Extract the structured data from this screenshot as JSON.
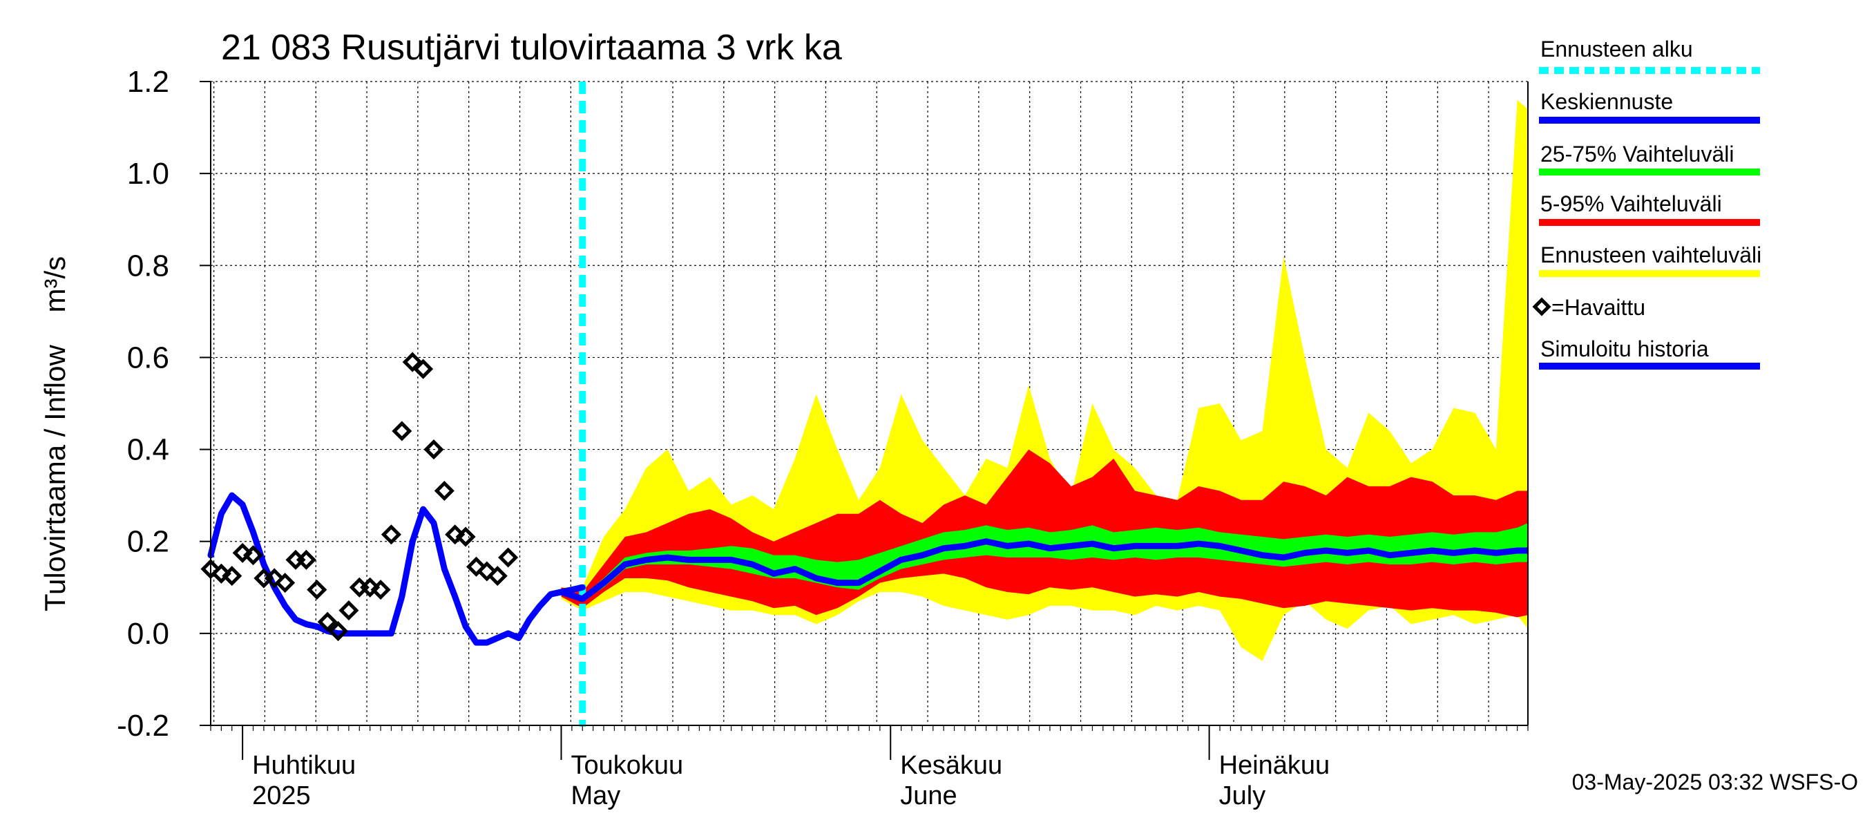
{
  "chart_data": {
    "type": "area",
    "title": "21 083 Rusutjärvi tulovirtaama 3 vrk ka",
    "ylabel": "Tulovirtaama / Inflow    m³/s",
    "ylim": [
      -0.2,
      1.2
    ],
    "yticks": [
      -0.2,
      0.0,
      0.2,
      0.4,
      0.6,
      0.8,
      1.0,
      1.2
    ],
    "ytick_labels": [
      "-0.2",
      "0.0",
      "0.2",
      "0.4",
      "0.6",
      "0.8",
      "1.0",
      "1.2"
    ],
    "xlim": [
      "2025-03-29",
      "2025-07-31"
    ],
    "grid": true,
    "legend_position": "right",
    "month_labels": [
      {
        "date": "2025-04-01",
        "fi": "Huhtikuu",
        "en": "2025"
      },
      {
        "date": "2025-05-01",
        "fi": "Toukokuu",
        "en": "May"
      },
      {
        "date": "2025-06-01",
        "fi": "Kesäkuu",
        "en": "June"
      },
      {
        "date": "2025-07-01",
        "fi": "Heinäkuu",
        "en": "July"
      }
    ],
    "forecast_start": "2025-05-03",
    "legend": [
      {
        "label": "Ennusteen alku",
        "color": "#00ffff",
        "style": "dashed"
      },
      {
        "label": "Keskiennuste",
        "color": "#0000ff",
        "style": "line"
      },
      {
        "label": "25-75% Vaihteluväli",
        "color": "#00ff00",
        "style": "line"
      },
      {
        "label": "5-95% Vaihteluväli",
        "color": "#ff0000",
        "style": "line"
      },
      {
        "label": "Ennusteen vaihteluväli",
        "color": "#ffff00",
        "style": "line"
      },
      {
        "label": "=Havaittu",
        "color": "#000000",
        "style": "diamond"
      },
      {
        "label": "Simuloitu historia",
        "color": "#0000ff",
        "style": "line"
      }
    ],
    "footer": "03-May-2025 03:32 WSFS-O",
    "observed": {
      "x": [
        "2025-03-29",
        "2025-03-30",
        "2025-03-31",
        "2025-04-01",
        "2025-04-02",
        "2025-04-03",
        "2025-04-04",
        "2025-04-05",
        "2025-04-06",
        "2025-04-07",
        "2025-04-08",
        "2025-04-09",
        "2025-04-10",
        "2025-04-11",
        "2025-04-12",
        "2025-04-13",
        "2025-04-14",
        "2025-04-15",
        "2025-04-16",
        "2025-04-17",
        "2025-04-18",
        "2025-04-19",
        "2025-04-20",
        "2025-04-21",
        "2025-04-22",
        "2025-04-23",
        "2025-04-24",
        "2025-04-25",
        "2025-04-26",
        "2025-04-27",
        "2025-04-28"
      ],
      "y": [
        0.14,
        0.13,
        0.125,
        0.175,
        0.17,
        0.12,
        0.12,
        0.11,
        0.16,
        0.16,
        0.095,
        0.025,
        0.005,
        0.05,
        0.1,
        0.1,
        0.095,
        0.215,
        0.44,
        0.59,
        0.575,
        0.4,
        0.31,
        0.215,
        0.21,
        0.145,
        0.135,
        0.125,
        0.165,
        null,
        null
      ]
    },
    "simulated_history": {
      "x": [
        "2025-03-29",
        "2025-03-30",
        "2025-03-31",
        "2025-04-01",
        "2025-04-02",
        "2025-04-03",
        "2025-04-04",
        "2025-04-05",
        "2025-04-06",
        "2025-04-07",
        "2025-04-08",
        "2025-04-09",
        "2025-04-10",
        "2025-04-11",
        "2025-04-12",
        "2025-04-13",
        "2025-04-14",
        "2025-04-15",
        "2025-04-16",
        "2025-04-17",
        "2025-04-18",
        "2025-04-19",
        "2025-04-20",
        "2025-04-21",
        "2025-04-22",
        "2025-04-23",
        "2025-04-24",
        "2025-04-25",
        "2025-04-26",
        "2025-04-27",
        "2025-04-28",
        "2025-04-29",
        "2025-04-30",
        "2025-05-01",
        "2025-05-02",
        "2025-05-03"
      ],
      "y": [
        0.17,
        0.26,
        0.3,
        0.28,
        0.22,
        0.15,
        0.1,
        0.06,
        0.03,
        0.02,
        0.015,
        0.005,
        0.0,
        0.0,
        0.0,
        0.0,
        0.0,
        0.0,
        0.08,
        0.2,
        0.27,
        0.24,
        0.14,
        0.08,
        0.015,
        -0.02,
        -0.02,
        -0.01,
        0.0,
        -0.01,
        0.03,
        0.06,
        0.085,
        0.09,
        0.095,
        0.1
      ]
    },
    "forecast": {
      "x": [
        "2025-05-01",
        "2025-05-03",
        "2025-05-05",
        "2025-05-07",
        "2025-05-09",
        "2025-05-11",
        "2025-05-13",
        "2025-05-15",
        "2025-05-17",
        "2025-05-19",
        "2025-05-21",
        "2025-05-23",
        "2025-05-25",
        "2025-05-27",
        "2025-05-29",
        "2025-05-31",
        "2025-06-02",
        "2025-06-04",
        "2025-06-06",
        "2025-06-08",
        "2025-06-10",
        "2025-06-12",
        "2025-06-14",
        "2025-06-16",
        "2025-06-18",
        "2025-06-20",
        "2025-06-22",
        "2025-06-24",
        "2025-06-26",
        "2025-06-28",
        "2025-06-30",
        "2025-07-02",
        "2025-07-04",
        "2025-07-06",
        "2025-07-08",
        "2025-07-10",
        "2025-07-12",
        "2025-07-14",
        "2025-07-16",
        "2025-07-18",
        "2025-07-20",
        "2025-07-22",
        "2025-07-24",
        "2025-07-26",
        "2025-07-28",
        "2025-07-30",
        "2025-07-31"
      ],
      "median": [
        0.09,
        0.075,
        0.11,
        0.15,
        0.16,
        0.165,
        0.16,
        0.16,
        0.16,
        0.15,
        0.13,
        0.14,
        0.12,
        0.11,
        0.11,
        0.135,
        0.16,
        0.17,
        0.185,
        0.19,
        0.2,
        0.19,
        0.195,
        0.185,
        0.19,
        0.195,
        0.185,
        0.19,
        0.19,
        0.19,
        0.195,
        0.19,
        0.18,
        0.17,
        0.165,
        0.175,
        0.18,
        0.175,
        0.18,
        0.17,
        0.175,
        0.18,
        0.175,
        0.18,
        0.175,
        0.18,
        0.18
      ],
      "p25": [
        0.085,
        0.07,
        0.1,
        0.14,
        0.15,
        0.15,
        0.15,
        0.145,
        0.14,
        0.13,
        0.12,
        0.12,
        0.11,
        0.1,
        0.095,
        0.12,
        0.14,
        0.15,
        0.16,
        0.165,
        0.17,
        0.165,
        0.165,
        0.165,
        0.16,
        0.165,
        0.16,
        0.165,
        0.16,
        0.165,
        0.165,
        0.16,
        0.155,
        0.15,
        0.145,
        0.15,
        0.155,
        0.15,
        0.155,
        0.15,
        0.15,
        0.155,
        0.15,
        0.155,
        0.15,
        0.155,
        0.155
      ],
      "p75": [
        0.095,
        0.08,
        0.12,
        0.165,
        0.175,
        0.18,
        0.18,
        0.185,
        0.19,
        0.185,
        0.17,
        0.17,
        0.16,
        0.155,
        0.16,
        0.175,
        0.19,
        0.205,
        0.22,
        0.225,
        0.235,
        0.225,
        0.23,
        0.22,
        0.225,
        0.235,
        0.22,
        0.225,
        0.23,
        0.225,
        0.23,
        0.22,
        0.215,
        0.21,
        0.205,
        0.21,
        0.215,
        0.21,
        0.215,
        0.21,
        0.215,
        0.22,
        0.215,
        0.22,
        0.22,
        0.23,
        0.24
      ],
      "p05": [
        0.08,
        0.055,
        0.09,
        0.12,
        0.12,
        0.115,
        0.1,
        0.09,
        0.08,
        0.07,
        0.055,
        0.06,
        0.04,
        0.055,
        0.08,
        0.11,
        0.12,
        0.125,
        0.13,
        0.12,
        0.1,
        0.09,
        0.085,
        0.1,
        0.095,
        0.1,
        0.09,
        0.08,
        0.085,
        0.08,
        0.09,
        0.08,
        0.075,
        0.065,
        0.055,
        0.06,
        0.07,
        0.065,
        0.06,
        0.055,
        0.05,
        0.055,
        0.05,
        0.05,
        0.045,
        0.035,
        0.04
      ],
      "p95": [
        0.1,
        0.09,
        0.15,
        0.21,
        0.22,
        0.24,
        0.26,
        0.27,
        0.25,
        0.22,
        0.2,
        0.22,
        0.24,
        0.26,
        0.26,
        0.29,
        0.26,
        0.24,
        0.28,
        0.3,
        0.28,
        0.34,
        0.4,
        0.37,
        0.32,
        0.34,
        0.38,
        0.31,
        0.3,
        0.29,
        0.32,
        0.31,
        0.29,
        0.29,
        0.33,
        0.32,
        0.3,
        0.34,
        0.32,
        0.32,
        0.34,
        0.33,
        0.3,
        0.3,
        0.29,
        0.31,
        0.31
      ],
      "min": [
        0.075,
        0.05,
        0.07,
        0.09,
        0.09,
        0.08,
        0.07,
        0.06,
        0.05,
        0.05,
        0.04,
        0.04,
        0.02,
        0.04,
        0.07,
        0.09,
        0.09,
        0.08,
        0.06,
        0.05,
        0.04,
        0.03,
        0.04,
        0.06,
        0.06,
        0.05,
        0.05,
        0.04,
        0.06,
        0.05,
        0.06,
        0.05,
        -0.03,
        -0.06,
        0.04,
        0.07,
        0.03,
        0.01,
        0.05,
        0.06,
        0.02,
        0.03,
        0.04,
        0.02,
        0.03,
        0.04,
        0.01
      ],
      "max": [
        0.1,
        0.1,
        0.21,
        0.27,
        0.36,
        0.4,
        0.31,
        0.34,
        0.28,
        0.3,
        0.27,
        0.38,
        0.52,
        0.4,
        0.29,
        0.36,
        0.52,
        0.42,
        0.36,
        0.3,
        0.38,
        0.36,
        0.54,
        0.38,
        0.3,
        0.5,
        0.4,
        0.36,
        0.3,
        0.29,
        0.49,
        0.5,
        0.42,
        0.44,
        0.82,
        0.6,
        0.4,
        0.36,
        0.48,
        0.44,
        0.37,
        0.4,
        0.49,
        0.48,
        0.4,
        1.16,
        1.14
      ]
    }
  }
}
